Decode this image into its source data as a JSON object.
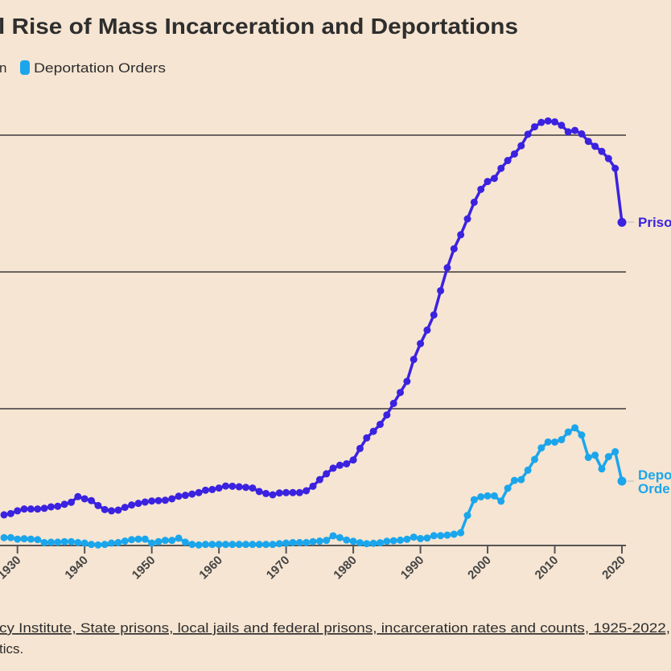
{
  "chart_data": {
    "type": "line",
    "title": "l Rise of Mass Incarceration and Deportations",
    "legend": {
      "placement": "top-left",
      "entries": [
        {
          "label": "n",
          "color": "#3b22e0"
        },
        {
          "label": "Deportation Orders",
          "color": "#1ba6ec"
        }
      ]
    },
    "x_ticks": [
      "1930",
      "1940",
      "1950",
      "1960",
      "1970",
      "1980",
      "1990",
      "2000",
      "2010",
      "2020"
    ],
    "xlim": [
      1927.4,
      2020
    ],
    "ylim": [
      0,
      2.35
    ],
    "y_gridlines": [
      0.75,
      1.5,
      2.25
    ],
    "grid": true,
    "marker": "circle",
    "series": [
      {
        "name": "Priso",
        "end_label": [
          "Priso"
        ],
        "color": "#3b22e0",
        "start_year": 1928,
        "values": [
          0.168,
          0.175,
          0.19,
          0.2,
          0.2,
          0.2,
          0.204,
          0.212,
          0.215,
          0.226,
          0.237,
          0.268,
          0.256,
          0.246,
          0.219,
          0.197,
          0.19,
          0.194,
          0.209,
          0.222,
          0.231,
          0.238,
          0.244,
          0.246,
          0.248,
          0.256,
          0.27,
          0.275,
          0.282,
          0.29,
          0.303,
          0.307,
          0.315,
          0.326,
          0.325,
          0.322,
          0.319,
          0.315,
          0.296,
          0.285,
          0.278,
          0.288,
          0.29,
          0.29,
          0.29,
          0.3,
          0.325,
          0.361,
          0.393,
          0.424,
          0.44,
          0.448,
          0.469,
          0.532,
          0.59,
          0.626,
          0.664,
          0.716,
          0.779,
          0.839,
          0.9,
          1.02,
          1.107,
          1.181,
          1.264,
          1.397,
          1.523,
          1.627,
          1.704,
          1.791,
          1.882,
          1.953,
          1.996,
          2.013,
          2.068,
          2.111,
          2.147,
          2.192,
          2.255,
          2.296,
          2.32,
          2.328,
          2.323,
          2.304,
          2.268,
          2.276,
          2.257,
          2.216,
          2.189,
          2.161,
          2.122,
          2.068,
          1.772
        ]
      },
      {
        "name": "Deportation Orders",
        "end_label": [
          "Depo",
          "Orde"
        ],
        "color": "#1ba6ec",
        "start_year": 1928,
        "values": [
          0.043,
          0.043,
          0.035,
          0.037,
          0.035,
          0.032,
          0.016,
          0.018,
          0.018,
          0.021,
          0.021,
          0.016,
          0.013,
          0.006,
          0.003,
          0.006,
          0.013,
          0.016,
          0.024,
          0.032,
          0.035,
          0.035,
          0.013,
          0.021,
          0.028,
          0.028,
          0.04,
          0.018,
          0.006,
          0.003,
          0.006,
          0.006,
          0.006,
          0.006,
          0.006,
          0.006,
          0.006,
          0.006,
          0.006,
          0.006,
          0.006,
          0.01,
          0.013,
          0.016,
          0.016,
          0.016,
          0.021,
          0.024,
          0.028,
          0.053,
          0.043,
          0.03,
          0.023,
          0.015,
          0.01,
          0.012,
          0.015,
          0.023,
          0.026,
          0.029,
          0.034,
          0.046,
          0.038,
          0.041,
          0.054,
          0.054,
          0.057,
          0.062,
          0.07,
          0.165,
          0.251,
          0.267,
          0.272,
          0.272,
          0.243,
          0.314,
          0.357,
          0.361,
          0.413,
          0.472,
          0.535,
          0.567,
          0.567,
          0.58,
          0.622,
          0.645,
          0.606,
          0.483,
          0.495,
          0.42,
          0.487,
          0.514,
          0.353
        ]
      }
    ]
  },
  "source": {
    "line1": "cy Institute, State prisons, local jails and federal prisons, incarceration rates and counts, 1925-2022,",
    "line2": "tics."
  }
}
